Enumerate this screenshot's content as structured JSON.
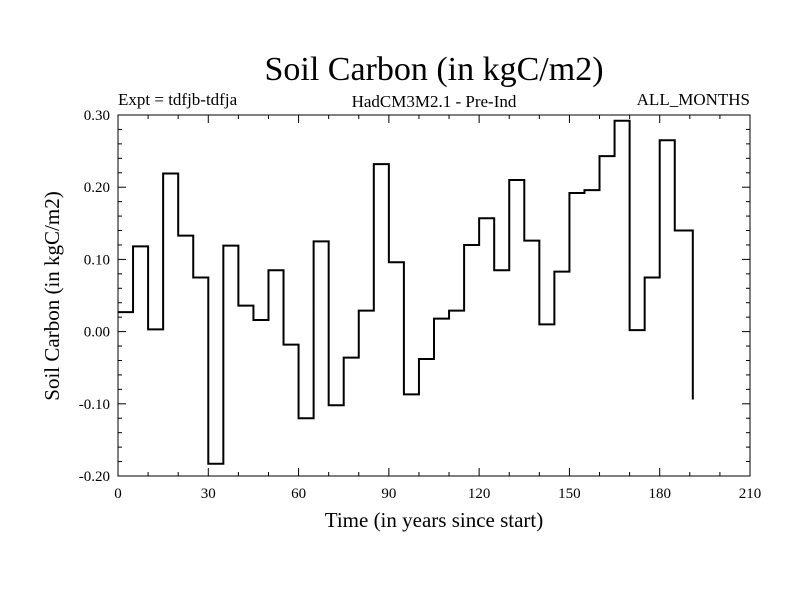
{
  "chart_data": {
    "type": "line",
    "step": true,
    "title": "Soil Carbon (in kgC/m2)",
    "subtitle_left": "Expt = tdfjb-tdfja",
    "subtitle_center": "HadCM3M2.1 - Pre-Ind",
    "subtitle_right": "ALL_MONTHS",
    "xlabel": "Time (in years since start)",
    "ylabel": "Soil Carbon (in kgC/m2)",
    "xlim": [
      0,
      210
    ],
    "ylim": [
      -0.2,
      0.3
    ],
    "xticks": [
      0,
      30,
      60,
      90,
      120,
      150,
      180,
      210
    ],
    "xtick_labels": [
      "0",
      "30",
      "60",
      "90",
      "120",
      "150",
      "180",
      "210"
    ],
    "yticks": [
      -0.2,
      -0.1,
      0.0,
      0.1,
      0.2,
      0.3
    ],
    "ytick_labels": [
      "-0.20",
      "-0.10",
      "0.00",
      "0.10",
      "0.20",
      "0.30"
    ],
    "series": [
      {
        "name": "Soil Carbon",
        "color": "#000000",
        "x_start": 0,
        "step_width": 5,
        "values": [
          0.027,
          0.118,
          0.003,
          0.219,
          0.133,
          0.075,
          -0.183,
          0.119,
          0.036,
          0.016,
          0.085,
          -0.018,
          -0.12,
          0.125,
          -0.102,
          -0.036,
          0.029,
          0.232,
          0.096,
          -0.087,
          -0.038,
          0.018,
          0.029,
          0.12,
          0.157,
          0.085,
          0.21,
          0.126,
          0.01,
          0.083,
          0.192,
          0.196,
          0.243,
          0.292,
          0.002,
          0.075,
          0.265,
          0.14
        ],
        "last_x": 191,
        "last_value": -0.094
      }
    ]
  }
}
